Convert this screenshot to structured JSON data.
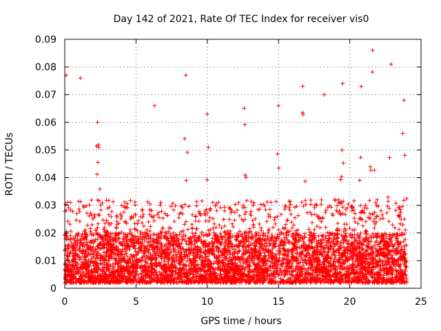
{
  "chart_data": {
    "type": "scatter",
    "title": "Day 142 of 2021, Rate Of TEC Index for receiver vis0",
    "xlabel": "GPS time / hours",
    "ylabel": "ROTI / TECUs",
    "xlim": [
      0,
      25
    ],
    "ylim": [
      0,
      0.09
    ],
    "xticks": [
      0,
      5,
      10,
      15,
      20,
      25
    ],
    "yticks": [
      0,
      0.01,
      0.02,
      0.03,
      0.04,
      0.05,
      0.06,
      0.07,
      0.08,
      0.09
    ],
    "x_tick_labels": [
      "0",
      "5",
      "10",
      "15",
      "20",
      "25"
    ],
    "y_tick_labels": [
      "0",
      "0.01",
      "0.02",
      "0.03",
      "0.04",
      "0.05",
      "0.06",
      "0.07",
      "0.08",
      "0.09"
    ],
    "grid": true,
    "marker": "+",
    "color": "#ff0000",
    "series": [
      {
        "name": "ROTI",
        "x_range_hours": [
          0,
          24
        ],
        "typical_range": [
          0.002,
          0.02
        ],
        "notable_peaks": [
          {
            "x": 0.1,
            "y": 0.077
          },
          {
            "x": 1.1,
            "y": 0.076
          },
          {
            "x": 2.3,
            "y": 0.06
          },
          {
            "x": 6.3,
            "y": 0.066
          },
          {
            "x": 8.5,
            "y": 0.077
          },
          {
            "x": 10.0,
            "y": 0.063
          },
          {
            "x": 12.6,
            "y": 0.065
          },
          {
            "x": 15.0,
            "y": 0.066
          },
          {
            "x": 16.7,
            "y": 0.073
          },
          {
            "x": 18.2,
            "y": 0.07
          },
          {
            "x": 19.5,
            "y": 0.074
          },
          {
            "x": 20.8,
            "y": 0.073
          },
          {
            "x": 21.6,
            "y": 0.086
          },
          {
            "x": 22.9,
            "y": 0.081
          },
          {
            "x": 23.8,
            "y": 0.068
          }
        ]
      }
    ]
  }
}
